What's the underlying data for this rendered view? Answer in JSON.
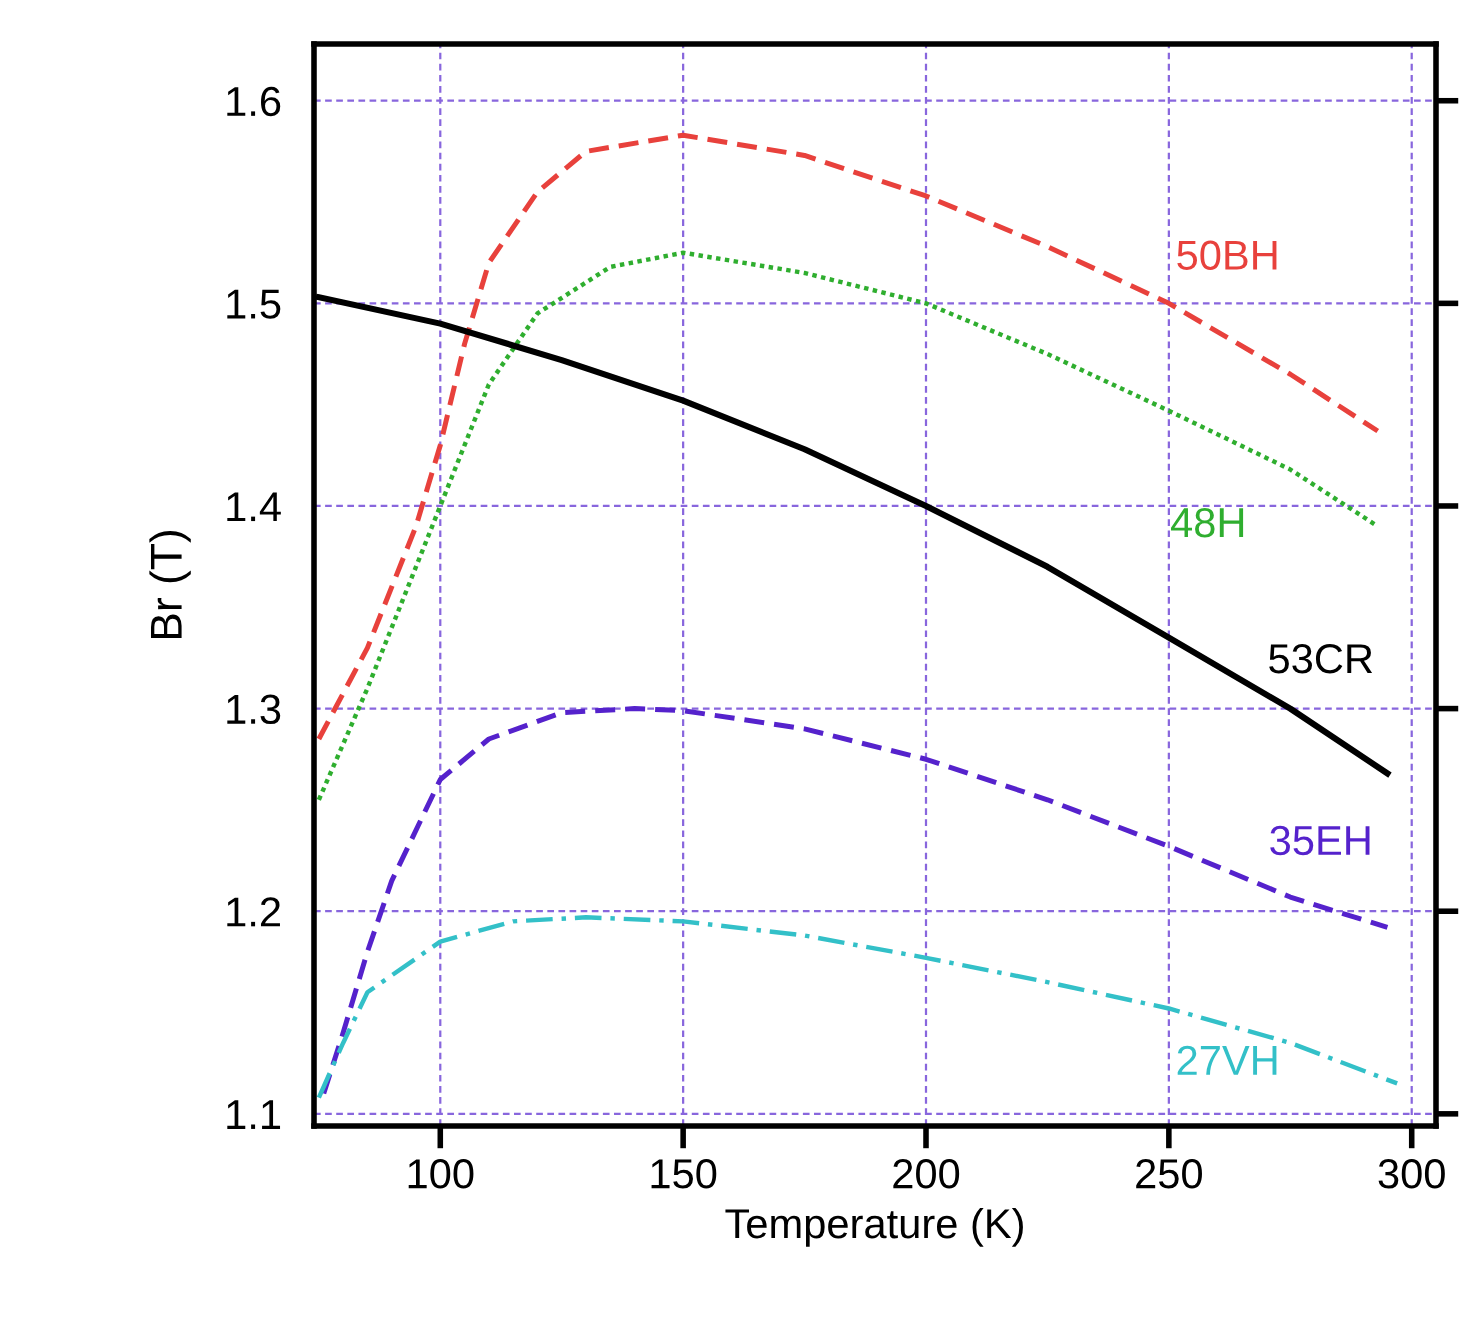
{
  "chart_data": {
    "type": "line",
    "xlabel": "Temperature (K)",
    "ylabel": "Br (T)",
    "xlim": [
      74,
      305
    ],
    "ylim": [
      1.094,
      1.628
    ],
    "xticks": [
      100,
      150,
      200,
      250,
      300
    ],
    "yticks": [
      1.1,
      1.2,
      1.3,
      1.4,
      1.5,
      1.6
    ],
    "grid": true,
    "legend": false,
    "series": [
      {
        "name": "50BH",
        "color": "#e8413c",
        "line_style": "dashed",
        "x": [
          75,
          85,
          95,
          100,
          105,
          110,
          120,
          130,
          150,
          175,
          200,
          225,
          250,
          275,
          293
        ],
        "values": [
          1.285,
          1.33,
          1.39,
          1.43,
          1.48,
          1.52,
          1.555,
          1.575,
          1.583,
          1.573,
          1.553,
          1.528,
          1.5,
          1.465,
          1.437
        ]
      },
      {
        "name": "48H",
        "color": "#2fae2f",
        "line_style": "dotted",
        "x": [
          75,
          85,
          95,
          100,
          110,
          120,
          135,
          150,
          175,
          200,
          225,
          250,
          275,
          293
        ],
        "values": [
          1.255,
          1.31,
          1.37,
          1.4,
          1.46,
          1.495,
          1.518,
          1.525,
          1.515,
          1.5,
          1.475,
          1.447,
          1.418,
          1.39
        ]
      },
      {
        "name": "53CR",
        "color": "#000000",
        "line_style": "solid",
        "x": [
          75,
          100,
          125,
          150,
          175,
          200,
          225,
          250,
          275,
          295
        ],
        "values": [
          1.503,
          1.49,
          1.472,
          1.452,
          1.428,
          1.4,
          1.37,
          1.335,
          1.3,
          1.268
        ]
      },
      {
        "name": "35EH",
        "color": "#5522cc",
        "line_style": "dashed",
        "x": [
          76,
          80,
          85,
          90,
          100,
          110,
          125,
          140,
          150,
          175,
          200,
          225,
          250,
          275,
          295
        ],
        "values": [
          1.11,
          1.14,
          1.18,
          1.215,
          1.265,
          1.285,
          1.298,
          1.3,
          1.299,
          1.29,
          1.275,
          1.255,
          1.232,
          1.207,
          1.192
        ]
      },
      {
        "name": "27VH",
        "color": "#33c0c8",
        "line_style": "dashdot",
        "x": [
          75,
          80,
          85,
          100,
          115,
          130,
          150,
          175,
          200,
          225,
          250,
          275,
          297
        ],
        "values": [
          1.108,
          1.135,
          1.16,
          1.185,
          1.195,
          1.197,
          1.195,
          1.188,
          1.177,
          1.165,
          1.152,
          1.135,
          1.115
        ]
      }
    ]
  }
}
